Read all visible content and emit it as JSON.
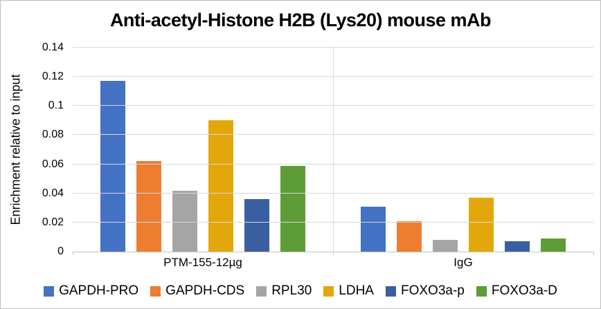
{
  "chart_data": {
    "type": "bar",
    "title": "Anti-acetyl-Histone H2B (Lys20) mouse mAb",
    "ylabel": "Enrichment relative to input",
    "xlabel": "",
    "categories": [
      "PTM-155-12µg",
      "IgG"
    ],
    "series": [
      {
        "name": "GAPDH-PRO",
        "color": "#4472C4",
        "values": [
          0.117,
          0.031
        ]
      },
      {
        "name": "GAPDH-CDS",
        "color": "#ED7D31",
        "values": [
          0.062,
          0.021
        ]
      },
      {
        "name": "RPL30",
        "color": "#A5A5A5",
        "values": [
          0.042,
          0.008
        ]
      },
      {
        "name": "LDHA",
        "color": "#E2A80B",
        "values": [
          0.09,
          0.037
        ]
      },
      {
        "name": "FOXO3a-p",
        "color": "#3A5FA0",
        "values": [
          0.036,
          0.007
        ]
      },
      {
        "name": "FOXO3a-D",
        "color": "#5D9C37",
        "values": [
          0.059,
          0.009
        ]
      }
    ],
    "ylim": [
      0,
      0.14
    ],
    "yticks": [
      "0",
      "0.02",
      "0.04",
      "0.06",
      "0.08",
      "0.1",
      "0.12",
      "0.14"
    ],
    "grid": true,
    "legend_position": "bottom",
    "colors": {
      "gridline": "#d9d9d9",
      "axis_line": "#c3c3c3",
      "background": "#ffffff"
    }
  }
}
